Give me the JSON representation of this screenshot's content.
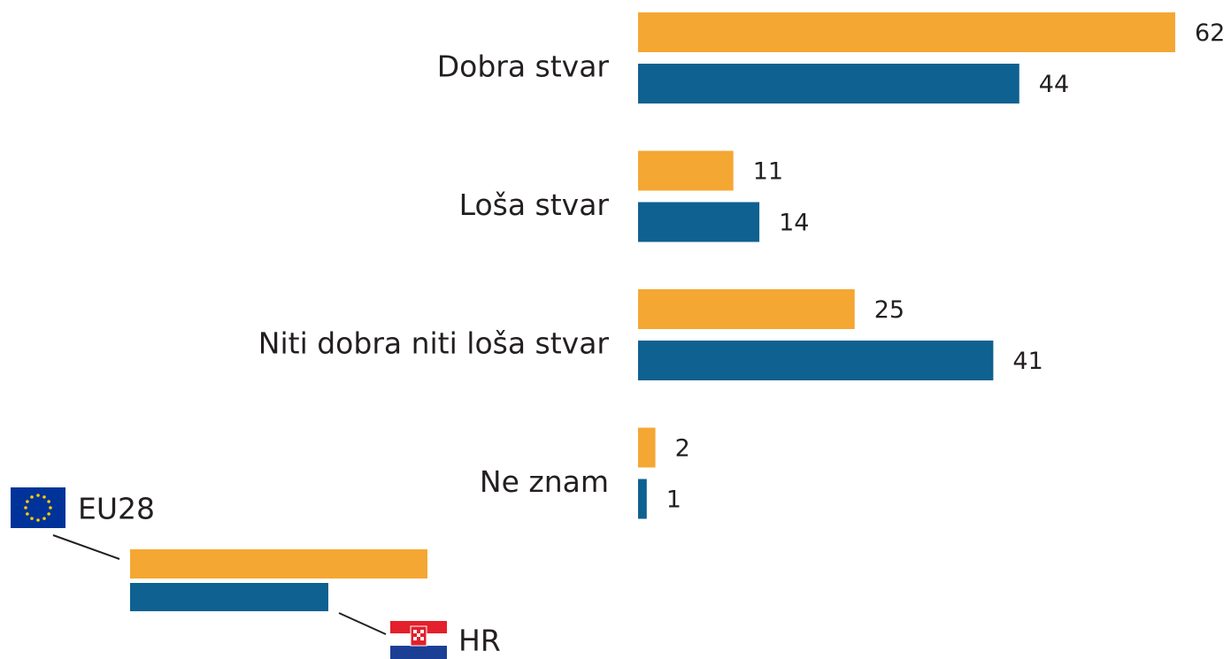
{
  "chart_data": {
    "type": "hbar",
    "categories": [
      "Dobra stvar",
      "Loša stvar",
      "Niti dobra niti loša stvar",
      "Ne znam"
    ],
    "series": [
      {
        "name": "EU28",
        "color": "#f5a733",
        "values": [
          62,
          11,
          25,
          2
        ]
      },
      {
        "name": "HR",
        "color": "#0e6190",
        "values": [
          44,
          14,
          41,
          1
        ]
      }
    ]
  }
}
